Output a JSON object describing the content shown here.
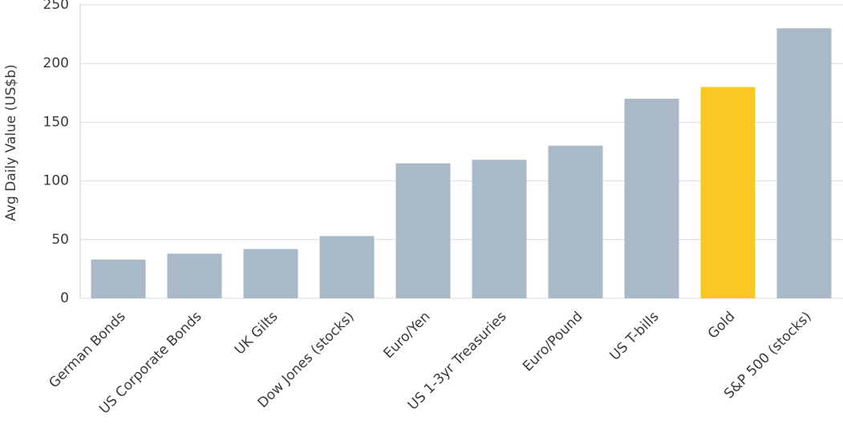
{
  "chart_data": {
    "type": "bar",
    "y_label": "Avg Daily Value (US$b)",
    "categories": [
      "German Bonds",
      "US Corporate Bonds",
      "UK Gilts",
      "Dow Jones (stocks)",
      "Euro/Yen",
      "US 1-3yr Treasuries",
      "Euro/Pound",
      "US T-bills",
      "Gold",
      "S&P 500 (stocks)"
    ],
    "values": [
      33,
      38,
      42,
      53,
      115,
      118,
      130,
      170,
      180,
      230
    ],
    "colors": [
      "#a9b9c8",
      "#a9b9c8",
      "#a9b9c8",
      "#a9b9c8",
      "#a9b9c8",
      "#a9b9c8",
      "#a9b9c8",
      "#a9b9c8",
      "#f9c823",
      "#a9b9c8"
    ],
    "ylim": [
      0,
      250
    ],
    "yticks": [
      0,
      50,
      100,
      150,
      200,
      250
    ],
    "grid": true
  }
}
